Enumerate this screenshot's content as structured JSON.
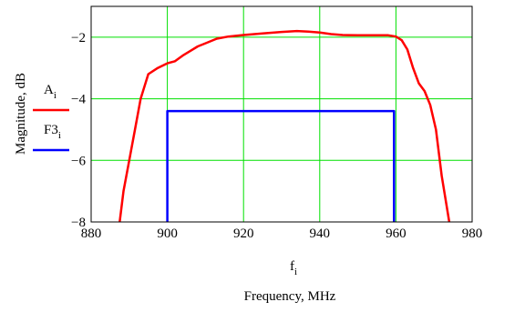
{
  "chart_data": {
    "type": "line",
    "xlabel": "Frequency, MHz",
    "x_variable": {
      "base": "f",
      "sub": "i"
    },
    "ylabel": "Magnitude, dB",
    "xlim": [
      880,
      980
    ],
    "ylim": [
      -8,
      -1
    ],
    "x_ticks": [
      880,
      900,
      920,
      940,
      960,
      980
    ],
    "y_ticks": [
      -2,
      -4,
      -6,
      -8
    ],
    "x_tick_labels": [
      "880",
      "900",
      "920",
      "940",
      "960",
      "980"
    ],
    "y_tick_labels": [
      "−2",
      "−4",
      "−6",
      "−8"
    ],
    "grid": true,
    "grid_color": "#00e000",
    "legend_position": "left",
    "series": [
      {
        "name": "A",
        "name_sub": "i",
        "color": "#ff0000",
        "x": [
          887.5,
          888.5,
          890,
          891.5,
          893,
          895,
          897.5,
          900,
          902,
          904,
          906,
          908,
          910,
          913,
          916,
          920,
          925,
          930,
          934,
          937,
          940,
          943,
          946,
          950,
          955,
          958,
          960,
          961.5,
          963,
          964.5,
          966,
          967.5,
          969,
          970.5,
          972,
          974
        ],
        "y": [
          -8,
          -7,
          -6,
          -5,
          -4,
          -3.2,
          -3.0,
          -2.85,
          -2.78,
          -2.6,
          -2.45,
          -2.3,
          -2.2,
          -2.05,
          -1.98,
          -1.93,
          -1.88,
          -1.83,
          -1.8,
          -1.82,
          -1.85,
          -1.9,
          -1.93,
          -1.94,
          -1.94,
          -1.94,
          -1.98,
          -2.1,
          -2.4,
          -3.0,
          -3.5,
          -3.75,
          -4.2,
          -5.0,
          -6.5,
          -8
        ]
      },
      {
        "name": "F3",
        "name_sub": "i",
        "color": "#0000ff",
        "x": [
          900,
          900,
          959.5,
          959.5
        ],
        "y": [
          -8,
          -4.4,
          -4.4,
          -8
        ]
      }
    ]
  }
}
